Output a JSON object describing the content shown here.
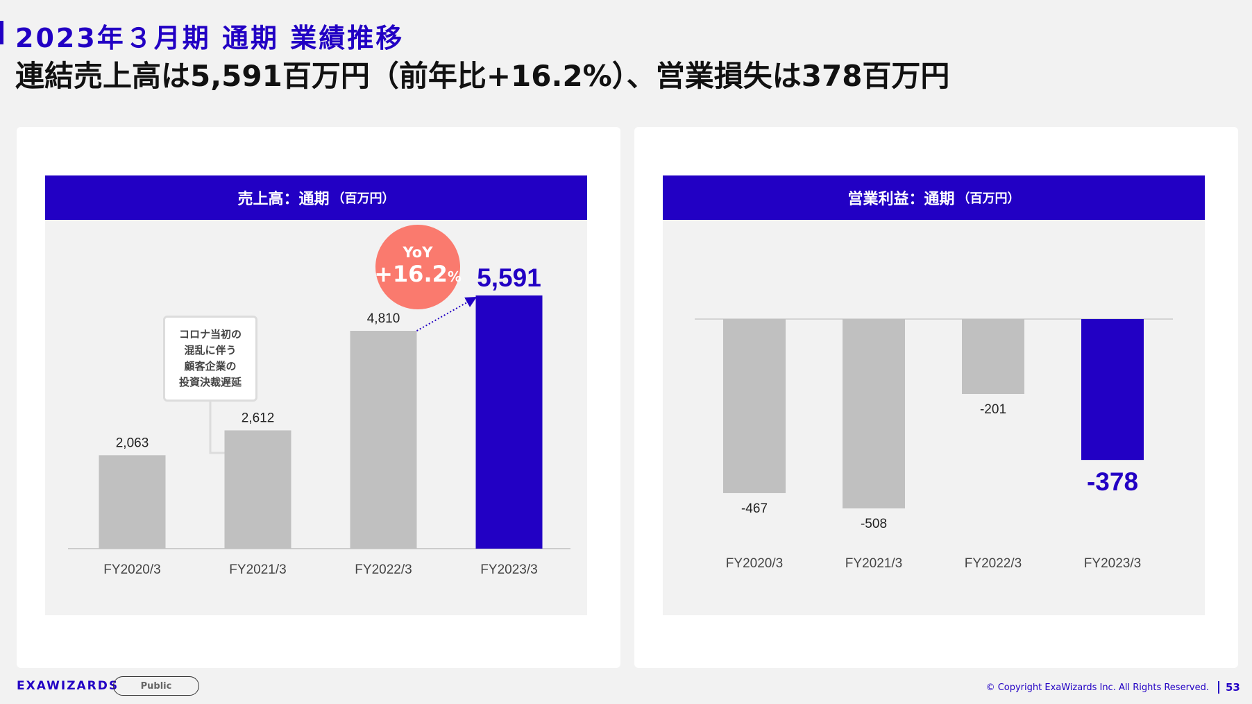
{
  "slide": {
    "subtitle": "2023年３月期 通期 業績推移",
    "title": "連結売上高は5,591百万円（前年比+16.2%）、営業損失は378百万円",
    "page_number": "53",
    "footer_logo": "EXAWIZARDS",
    "footer_tag": "Public",
    "copyright": "© Copyright ExaWizards Inc. All Rights Reserved."
  },
  "colors": {
    "accent": "#2200c4",
    "bar_gray": "#c0c0c0",
    "yoy_circle": "#fa7a6e"
  },
  "annotations": {
    "yoy_label": "YoY",
    "yoy_value": "+16.2",
    "yoy_unit": "%",
    "note_lines": [
      "コロナ当初の",
      "混乱に伴う",
      "顧客企業の",
      "投資決裁遅延"
    ]
  },
  "chart_data": [
    {
      "type": "bar",
      "title": "売上高：通期",
      "unit": "（百万円）",
      "categories": [
        "FY2020/3",
        "FY2021/3",
        "FY2022/3",
        "FY2023/3"
      ],
      "values": [
        2063,
        2612,
        4810,
        5591
      ],
      "labels": [
        "2,063",
        "2,612",
        "4,810",
        "5,591"
      ],
      "highlight_index": 3,
      "ylim": [
        0,
        5591
      ]
    },
    {
      "type": "bar",
      "title": "営業利益：通期",
      "unit": "（百万円）",
      "categories": [
        "FY2020/3",
        "FY2021/3",
        "FY2022/3",
        "FY2023/3"
      ],
      "values": [
        -467,
        -508,
        -201,
        -378
      ],
      "labels": [
        "-467",
        "-508",
        "-201",
        "-378"
      ],
      "highlight_index": 3,
      "ylim": [
        -508,
        0
      ]
    }
  ]
}
